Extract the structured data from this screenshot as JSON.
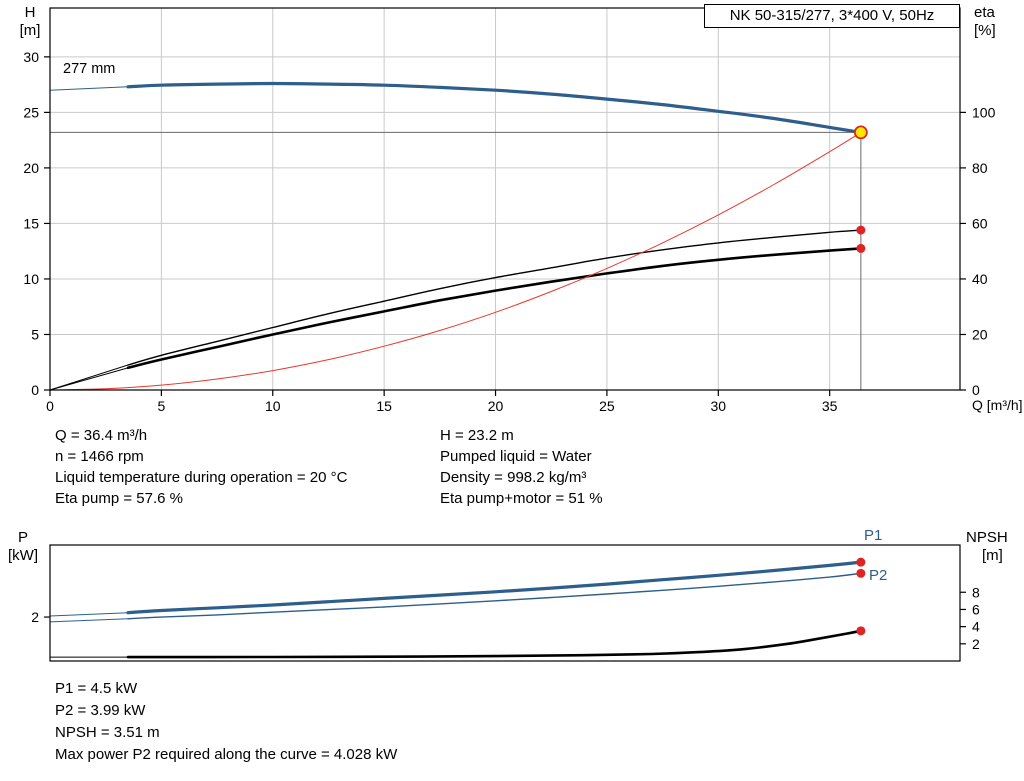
{
  "title_box": "NK 50-315/277, 3*400 V, 50Hz",
  "labels": {
    "h_axis": "H",
    "h_unit": "[m]",
    "eta_axis": "eta",
    "eta_unit": "[%]",
    "q_axis": "Q [m³/h]",
    "impeller": "277 mm",
    "p_axis": "P",
    "p_unit": "[kW]",
    "npsh_axis": "NPSH",
    "npsh_unit": "[m]",
    "p1": "P1",
    "p2": "P2"
  },
  "info_top": {
    "left": [
      "Q = 36.4 m³/h",
      "n = 1466 rpm",
      "Liquid temperature during operation = 20 °C",
      "Eta pump = 57.6 %"
    ],
    "right": [
      "H = 23.2 m",
      "Pumped liquid = Water",
      "Density = 998.2 kg/m³",
      "Eta pump+motor = 51 %"
    ]
  },
  "info_bottom": [
    "P1 = 4.5 kW",
    "P2 = 3.99 kW",
    "NPSH = 3.51 m",
    "Max power P2 required along the curve = 4.028 kW"
  ],
  "colors": {
    "curve_blue": "#2d5e8c",
    "curve_red": "#e8372c",
    "curve_black": "#000000",
    "grid": "#c9c9c9",
    "axis": "#000000",
    "crosshair": "#6a6a6a",
    "duty_fill": "#ffe800",
    "dot_red": "#e02424"
  },
  "chart_data": [
    {
      "type": "line",
      "title": "NK 50-315/277, 3*400 V, 50Hz",
      "xlabel": "Q [m³/h]",
      "ylabel_left": "H [m]",
      "ylabel_right": "eta [%]",
      "xlim": [
        0,
        40.85
      ],
      "ylim_left": [
        0,
        34.4
      ],
      "ylim_right_eta": [
        0,
        137.6
      ],
      "x_ticks": [
        0,
        5,
        10,
        15,
        20,
        25,
        30,
        35
      ],
      "y_ticks_left": [
        0,
        5,
        10,
        15,
        20,
        25,
        30
      ],
      "y_ticks_right": [
        0,
        20,
        40,
        60,
        80,
        100
      ],
      "grid": true,
      "duty_point": {
        "q": 36.4,
        "h": 23.2
      },
      "series": [
        {
          "name": "head-curve",
          "axis": "H",
          "color": "#2d5e8c",
          "width": 3.2,
          "lead": [
            [
              0,
              27.0
            ],
            [
              3.5,
              27.3
            ]
          ],
          "points": [
            [
              3.5,
              27.3
            ],
            [
              5,
              27.45
            ],
            [
              7.5,
              27.55
            ],
            [
              10,
              27.6
            ],
            [
              12.5,
              27.55
            ],
            [
              15,
              27.45
            ],
            [
              17.5,
              27.25
            ],
            [
              20,
              27.0
            ],
            [
              22.5,
              26.65
            ],
            [
              25,
              26.2
            ],
            [
              27.5,
              25.7
            ],
            [
              30,
              25.1
            ],
            [
              32.5,
              24.45
            ],
            [
              35,
              23.65
            ],
            [
              36.4,
              23.2
            ]
          ]
        },
        {
          "name": "eta-pump-curve",
          "axis": "eta",
          "color": "#000000",
          "width": 1.4,
          "lead": [
            [
              0,
              0
            ],
            [
              3.5,
              9
            ]
          ],
          "points": [
            [
              3.5,
              9
            ],
            [
              5,
              12.5
            ],
            [
              7.5,
              17.5
            ],
            [
              10,
              22.5
            ],
            [
              12.5,
              27.5
            ],
            [
              15,
              32
            ],
            [
              17.5,
              36.5
            ],
            [
              20,
              40.5
            ],
            [
              22.5,
              44
            ],
            [
              25,
              47.5
            ],
            [
              27.5,
              50.5
            ],
            [
              30,
              53
            ],
            [
              32.5,
              55
            ],
            [
              35,
              56.8
            ],
            [
              36.4,
              57.6
            ]
          ]
        },
        {
          "name": "eta-pump-motor-curve",
          "axis": "eta",
          "color": "#000000",
          "width": 2.6,
          "lead": [
            [
              0,
              0
            ],
            [
              3.5,
              8
            ]
          ],
          "points": [
            [
              3.5,
              8
            ],
            [
              5,
              11
            ],
            [
              7.5,
              15.5
            ],
            [
              10,
              20
            ],
            [
              12.5,
              24.3
            ],
            [
              15,
              28.3
            ],
            [
              17.5,
              32.3
            ],
            [
              20,
              35.8
            ],
            [
              22.5,
              39
            ],
            [
              25,
              42
            ],
            [
              27.5,
              44.7
            ],
            [
              30,
              46.9
            ],
            [
              32.5,
              48.7
            ],
            [
              35,
              50.2
            ],
            [
              36.4,
              51
            ]
          ]
        },
        {
          "name": "system-curve",
          "axis": "H",
          "color": "#e8372c",
          "width": 1,
          "points": [
            [
              0,
              0
            ],
            [
              2.5,
              0.11
            ],
            [
              5,
              0.44
            ],
            [
              7.5,
              0.99
            ],
            [
              10,
              1.75
            ],
            [
              12.5,
              2.74
            ],
            [
              15,
              3.94
            ],
            [
              17.5,
              5.36
            ],
            [
              20,
              7.0
            ],
            [
              22.5,
              8.87
            ],
            [
              25,
              10.95
            ],
            [
              27.5,
              13.25
            ],
            [
              30,
              15.77
            ],
            [
              32.5,
              18.51
            ],
            [
              35,
              21.46
            ],
            [
              36.4,
              23.2
            ]
          ]
        }
      ],
      "dots": [
        {
          "axis": "eta",
          "q": 36.4,
          "v": 57.6
        },
        {
          "axis": "eta",
          "q": 36.4,
          "v": 51
        }
      ]
    },
    {
      "type": "line",
      "ylabel_left": "P [kW]",
      "ylabel_right": "NPSH [m]",
      "xlim": [
        0,
        40.85
      ],
      "ylim_left": [
        0,
        5.28
      ],
      "ylim_right": [
        0,
        13.5
      ],
      "x_ticks": [],
      "y_ticks_left": [
        2
      ],
      "y_ticks_right": [
        2,
        4,
        6,
        8
      ],
      "grid": false,
      "series": [
        {
          "name": "p1-curve",
          "axis": "P",
          "color": "#2d5e8c",
          "width": 3.2,
          "lead": [
            [
              0,
              2.05
            ],
            [
              3.5,
              2.2
            ]
          ],
          "points": [
            [
              3.5,
              2.2
            ],
            [
              5,
              2.3
            ],
            [
              7.5,
              2.42
            ],
            [
              10,
              2.55
            ],
            [
              12.5,
              2.7
            ],
            [
              15,
              2.85
            ],
            [
              17.5,
              3.0
            ],
            [
              20,
              3.15
            ],
            [
              22.5,
              3.32
            ],
            [
              25,
              3.5
            ],
            [
              27.5,
              3.7
            ],
            [
              30,
              3.9
            ],
            [
              32.5,
              4.12
            ],
            [
              35,
              4.35
            ],
            [
              36.4,
              4.5
            ]
          ]
        },
        {
          "name": "p2-curve",
          "axis": "P",
          "color": "#2d5e8c",
          "width": 1.4,
          "lead": [
            [
              0,
              1.78
            ],
            [
              3.5,
              1.92
            ]
          ],
          "points": [
            [
              3.5,
              1.92
            ],
            [
              5,
              2.0
            ],
            [
              7.5,
              2.1
            ],
            [
              10,
              2.22
            ],
            [
              12.5,
              2.34
            ],
            [
              15,
              2.46
            ],
            [
              17.5,
              2.6
            ],
            [
              20,
              2.74
            ],
            [
              22.5,
              2.89
            ],
            [
              25,
              3.05
            ],
            [
              27.5,
              3.22
            ],
            [
              30,
              3.4
            ],
            [
              32.5,
              3.6
            ],
            [
              35,
              3.82
            ],
            [
              36.4,
              3.99
            ]
          ]
        },
        {
          "name": "npsh-curve",
          "axis": "NPSH",
          "color": "#000000",
          "width": 2.6,
          "lead": [
            [
              0,
              0.45
            ],
            [
              3.5,
              0.45
            ]
          ],
          "points": [
            [
              3.5,
              0.45
            ],
            [
              10,
              0.47
            ],
            [
              15,
              0.5
            ],
            [
              20,
              0.57
            ],
            [
              24,
              0.67
            ],
            [
              27,
              0.82
            ],
            [
              29,
              1.02
            ],
            [
              31,
              1.35
            ],
            [
              33,
              1.95
            ],
            [
              34.5,
              2.6
            ],
            [
              35.7,
              3.15
            ],
            [
              36.4,
              3.51
            ]
          ]
        }
      ],
      "dots": [
        {
          "axis": "P",
          "q": 36.4,
          "v": 4.5
        },
        {
          "axis": "P",
          "q": 36.4,
          "v": 3.99
        },
        {
          "axis": "NPSH",
          "q": 36.4,
          "v": 3.51
        }
      ]
    }
  ]
}
